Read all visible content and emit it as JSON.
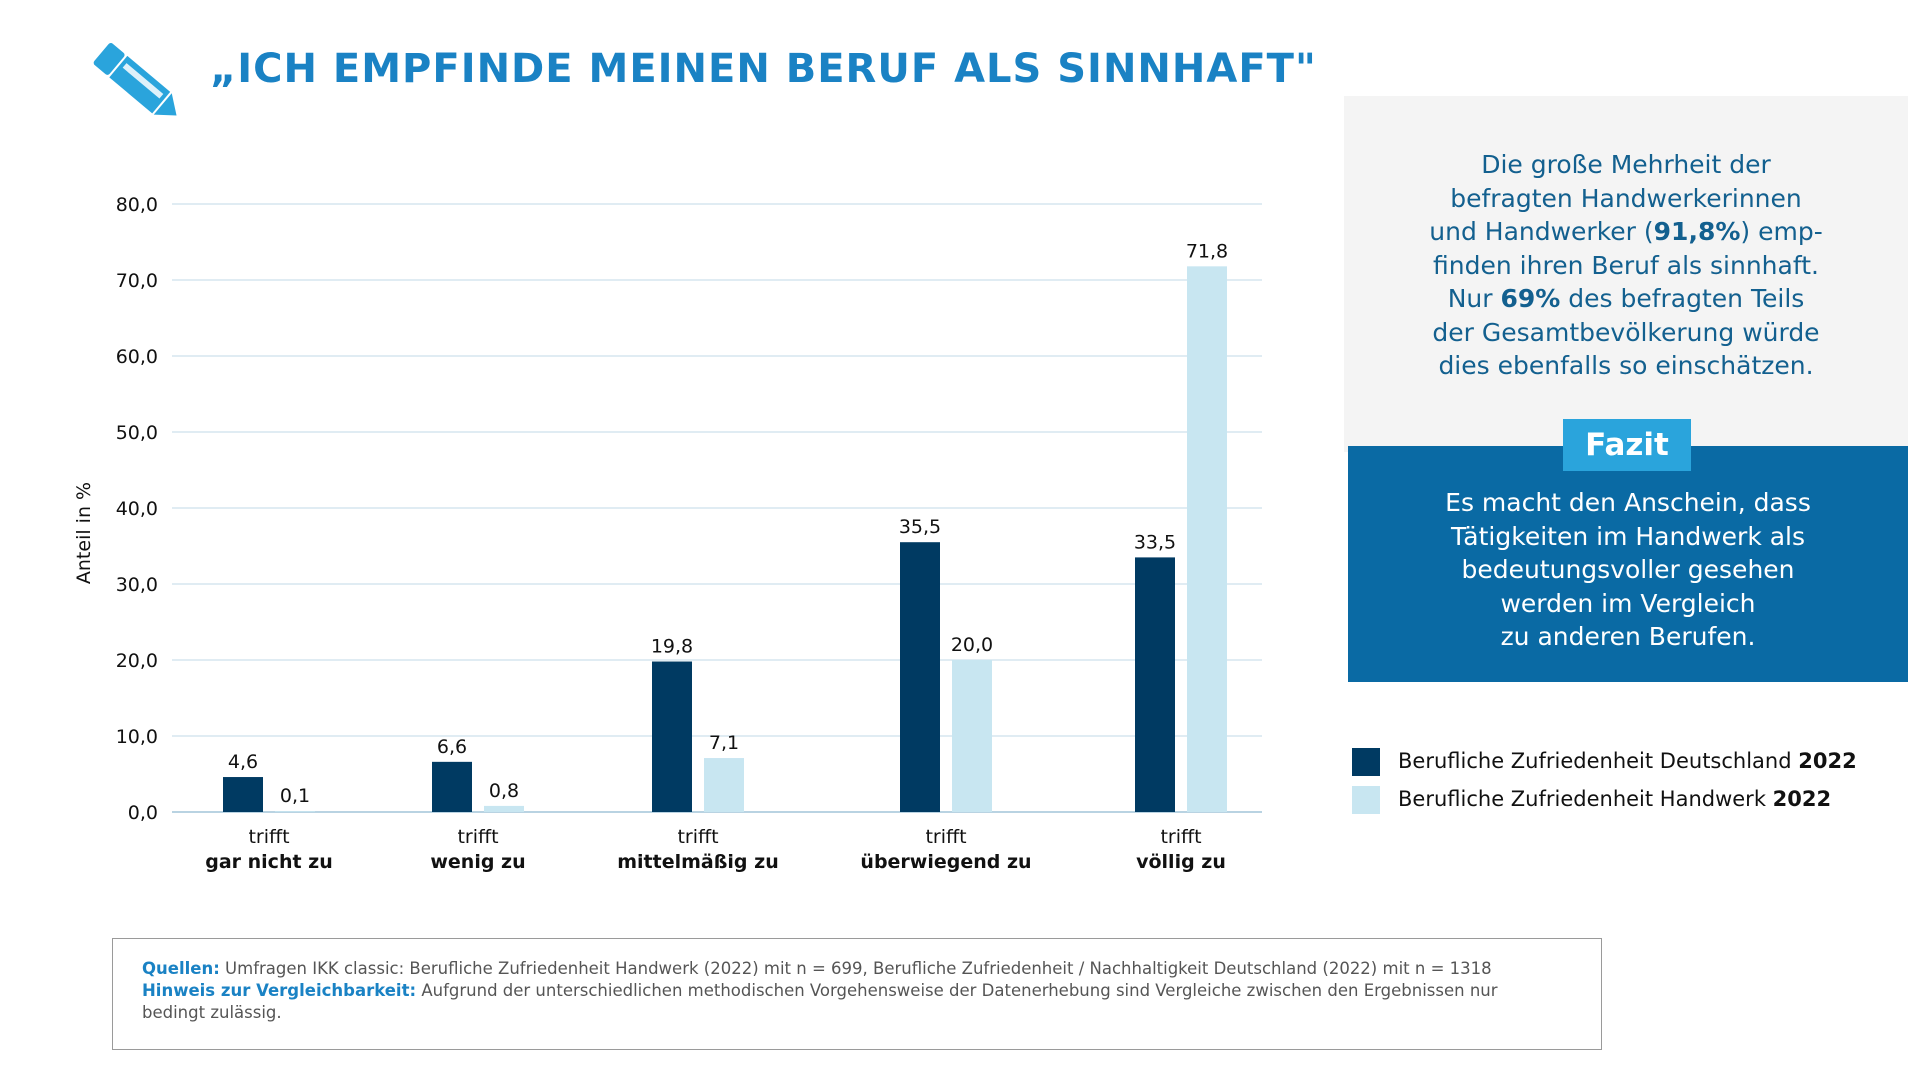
{
  "header": {
    "title": "„ICH EMPFINDE MEINEN BERUF ALS SINNHAFT\"",
    "icon": "pencil-icon"
  },
  "chart_data": {
    "type": "bar",
    "ylabel": "Anteil in %",
    "xlabel": "",
    "ylim": [
      0,
      80
    ],
    "yticks": [
      "0,0",
      "10,0",
      "20,0",
      "30,0",
      "40,0",
      "50,0",
      "60,0",
      "70,0",
      "80,0"
    ],
    "grid": true,
    "legend_position": "right",
    "categories": [
      {
        "line1": "trifft",
        "line2": "gar nicht zu"
      },
      {
        "line1": "trifft",
        "line2": "wenig zu"
      },
      {
        "line1": "trifft",
        "line2": "mittelmäßig zu"
      },
      {
        "line1": "trifft",
        "line2": "überwiegend zu"
      },
      {
        "line1": "trifft",
        "line2": "völlig zu"
      }
    ],
    "series": [
      {
        "name": "Berufliche Zufriedenheit Deutschland",
        "name_bold": "2022",
        "color": "#003a62",
        "values": [
          4.6,
          6.6,
          19.8,
          35.5,
          33.5
        ],
        "labels": [
          "4,6",
          "6,6",
          "19,8",
          "35,5",
          "33,5"
        ]
      },
      {
        "name": "Berufliche Zufriedenheit Handwerk",
        "name_bold": "2022",
        "color": "#c8e6f1",
        "values": [
          0.1,
          0.8,
          7.1,
          20.0,
          71.8
        ],
        "labels": [
          "0,1",
          "0,8",
          "7,1",
          "20,0",
          "71,8"
        ]
      }
    ]
  },
  "info": {
    "lines": [
      [
        "Die große Mehrheit der"
      ],
      [
        "befragten Handwerkerinnen"
      ],
      [
        "und Handwerker (",
        {
          "b": "91,8%"
        },
        ") emp-"
      ],
      [
        "finden ihren Beruf als sinnhaft."
      ],
      [
        "Nur ",
        {
          "b": "69%"
        },
        " des befragten Teils"
      ],
      [
        "der Gesamtbevölkerung würde"
      ],
      [
        "dies ebenfalls so einschätzen."
      ]
    ]
  },
  "fazit": {
    "tag": "Fazit",
    "lines": [
      "Es macht den Anschein, dass",
      "Tätigkeiten im Handwerk als",
      "bedeutungsvoller gesehen",
      "werden im Vergleich",
      "zu anderen Berufen."
    ]
  },
  "sources": {
    "label1": "Quellen:",
    "text1": " Umfragen IKK classic: Berufliche Zufriedenheit Handwerk (2022) mit n = 699, Berufliche Zufriedenheit / Nachhaltigkeit Deutschland (2022) mit n = 1318",
    "label2": "Hinweis zur Vergleichbarkeit:",
    "text2": " Aufgrund der unterschiedlichen methodischen Vorgehensweise der Datenerhebung sind Vergleiche zwischen den Ergebnissen nur bedingt zulässig."
  }
}
